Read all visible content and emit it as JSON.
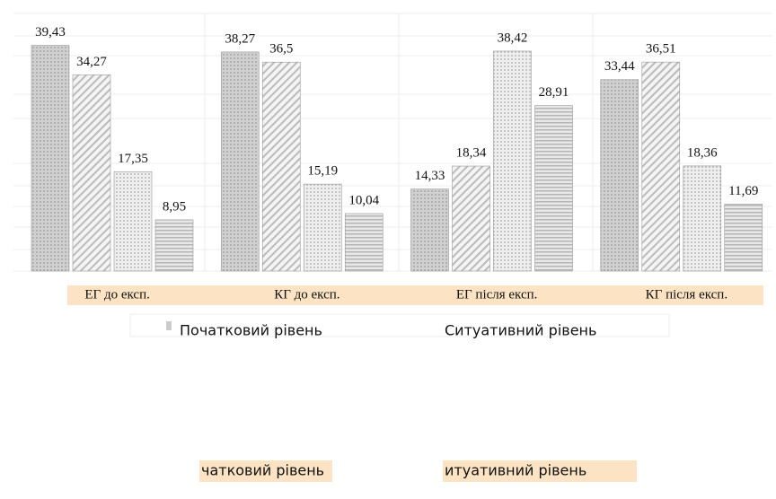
{
  "chart_data": {
    "type": "bar",
    "categories": [
      "ЕГ до експ.",
      "КГ до експ.",
      "ЕГ після експ.",
      "КГ після експ."
    ],
    "ylim": [
      0,
      45
    ],
    "series": [
      {
        "name": "Початковий рівень",
        "color": "#bdbdbd",
        "values": [
          39.43,
          38.27,
          14.33,
          33.44
        ],
        "value_labels": [
          "39,43",
          "38,27",
          "14,33",
          "33,44"
        ]
      },
      {
        "name": "Ситуативний рівень",
        "color": "#e2e2e2",
        "values": [
          34.27,
          36.5,
          18.34,
          36.51
        ],
        "value_labels": [
          "34,27",
          "36,5",
          "18,34",
          "36,51"
        ]
      },
      {
        "color": "#d6d6d6",
        "values": [
          17.35,
          15.19,
          38.42,
          18.36
        ],
        "value_labels": [
          "17,35",
          "15,19",
          "38,42",
          "18,36"
        ]
      },
      {
        "color": "#cfcfcf",
        "values": [
          8.95,
          10.04,
          28.91,
          11.69
        ],
        "value_labels": [
          "8,95",
          "10,04",
          "28,91",
          "11,69"
        ]
      }
    ],
    "footer_labels": [
      "чатковий рівень",
      "итуативний рівень"
    ]
  }
}
